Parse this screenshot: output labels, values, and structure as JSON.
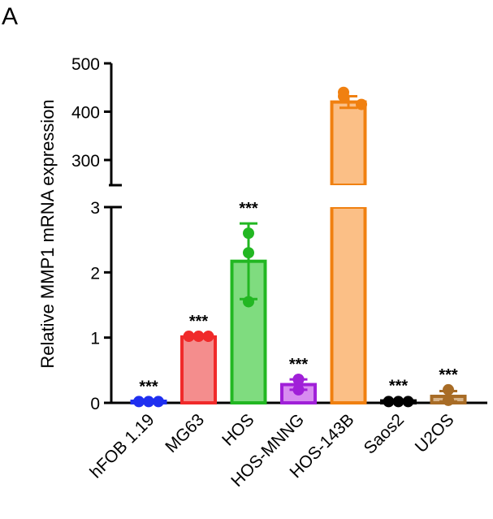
{
  "panel_label": "A",
  "chart_data": {
    "type": "bar",
    "title": "",
    "xlabel": "",
    "ylabel": "Relative MMP1 mRNA expression",
    "categories": [
      "hFOB 1.19",
      "MG63",
      "HOS",
      "HOS-MNNG",
      "HOS-143B",
      "Saos2",
      "U2OS"
    ],
    "values": [
      0.02,
      1.01,
      2.17,
      0.28,
      420,
      0.03,
      0.1
    ],
    "error": [
      0.02,
      0.02,
      0.58,
      0.08,
      12,
      0.01,
      0.08
    ],
    "points": [
      [
        0.02,
        0.02,
        0.02
      ],
      [
        1.02,
        1.02,
        1.02
      ],
      [
        2.6,
        2.3,
        1.55
      ],
      [
        0.36,
        0.36,
        0.2
      ],
      [
        440,
        432,
        415
      ],
      [
        0.02,
        0.02,
        0.02
      ],
      [
        0.2,
        0.04,
        0.04
      ]
    ],
    "significance": [
      "***",
      "***",
      "***",
      "***",
      "",
      "***",
      "***"
    ],
    "colors": [
      "#1f2ff0",
      "#f02a2a",
      "#22b722",
      "#a020d8",
      "#f08010",
      "#000000",
      "#a86c26"
    ],
    "fill_colors": [
      "#8f97f8",
      "#f48d8d",
      "#7fdc7f",
      "#d88cf0",
      "#fbbf86",
      "#555555",
      "#d8b48a"
    ],
    "y_axis_segments": {
      "lower": {
        "ylim": [
          0,
          3
        ],
        "ticks": [
          "0",
          "1",
          "2",
          "3"
        ]
      },
      "upper": {
        "ylim": [
          250,
          500
        ],
        "ticks": [
          "300",
          "400",
          "500"
        ]
      }
    }
  }
}
